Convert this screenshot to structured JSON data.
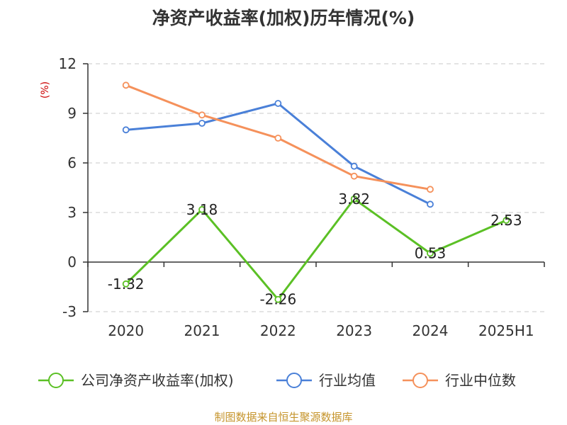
{
  "chart_data": {
    "type": "line",
    "title": "净资产收益率(加权)历年情况(%)",
    "ylabel": "(%)",
    "xlabel": "",
    "categories": [
      "2020",
      "2021",
      "2022",
      "2023",
      "2024",
      "2025H1"
    ],
    "ylim": [
      -3,
      12
    ],
    "yticks": [
      12,
      9,
      6,
      3,
      0,
      -3
    ],
    "grid": true,
    "legend_position": "bottom",
    "series": [
      {
        "name": "公司净资产收益率(加权)",
        "color": "#5bc025",
        "values": [
          -1.32,
          3.18,
          -2.26,
          3.82,
          0.53,
          2.53
        ],
        "labels": [
          "-1.32",
          "3.18",
          "-2.26",
          "3.82",
          "0.53",
          "2.53"
        ]
      },
      {
        "name": "行业均值",
        "color": "#4a80d8",
        "values": [
          8.0,
          8.4,
          9.6,
          5.8,
          3.5,
          null
        ]
      },
      {
        "name": "行业中位数",
        "color": "#f5915b",
        "values": [
          10.7,
          8.9,
          7.5,
          5.2,
          4.4,
          null
        ]
      }
    ]
  },
  "source": "制图数据来自恒生聚源数据库"
}
